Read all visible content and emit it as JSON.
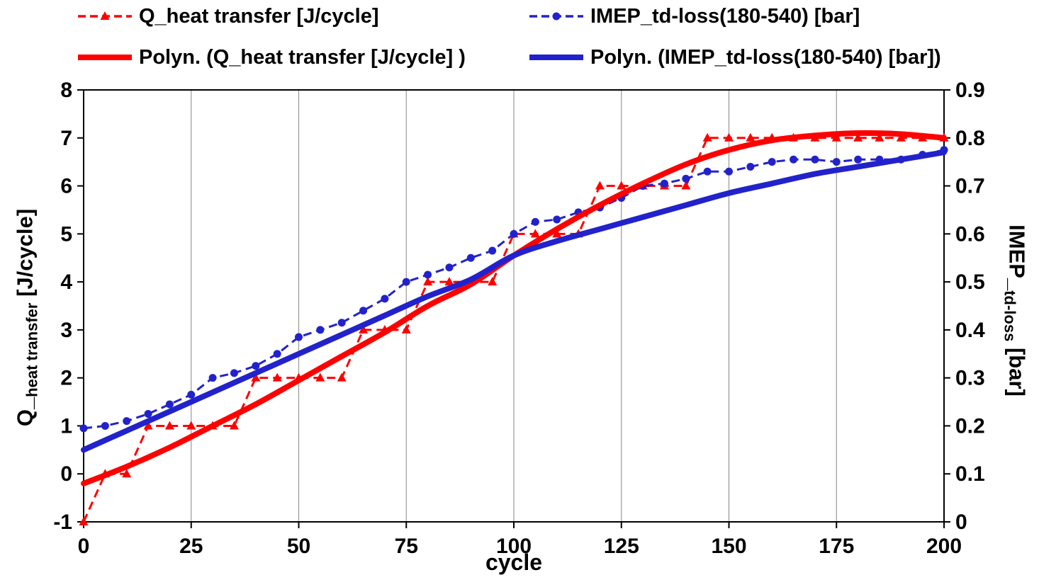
{
  "chart_data": {
    "type": "line",
    "title": "",
    "xlabel": "cycle",
    "ylabel_left": {
      "main": "Q_",
      "sub": "heat transfer",
      "rest": " [J/cycle]"
    },
    "ylabel_right": {
      "main": "IMEP_",
      "sub": "td-loss",
      "rest": "  [bar]"
    },
    "xlim": [
      0,
      200
    ],
    "ylim_left": [
      -1,
      8
    ],
    "ylim_right": [
      0,
      0.9
    ],
    "xticks": [
      "0",
      "25",
      "50",
      "75",
      "100",
      "125",
      "150",
      "175",
      "200"
    ],
    "yticks_left": [
      "-1",
      "0",
      "1",
      "2",
      "3",
      "4",
      "5",
      "6",
      "7",
      "8"
    ],
    "yticks_right": [
      "0",
      "0.1",
      "0.2",
      "0.3",
      "0.4",
      "0.5",
      "0.6",
      "0.7",
      "0.8",
      "0.9"
    ],
    "grid": "vertical-only",
    "legend_position": "top",
    "colors": {
      "red": "#FF0000",
      "blue": "#2222CC",
      "grid": "#999999",
      "axis": "#000000",
      "text": "#000000"
    },
    "series": [
      {
        "name": "Q_heat transfer [J/cycle]",
        "axis": "left",
        "color": "#FF0000",
        "line": "dashed",
        "width": 3,
        "marker": "triangle",
        "x": [
          0,
          5,
          10,
          15,
          20,
          25,
          30,
          35,
          40,
          45,
          50,
          55,
          60,
          65,
          70,
          75,
          80,
          85,
          90,
          95,
          100,
          105,
          110,
          115,
          120,
          125,
          130,
          135,
          140,
          145,
          150,
          155,
          160,
          165,
          170,
          175,
          180,
          185,
          190,
          195,
          200
        ],
        "y": [
          -1,
          0,
          0,
          1,
          1,
          1,
          1,
          1,
          2,
          2,
          2,
          2,
          2,
          3,
          3,
          3,
          4,
          4,
          4,
          4,
          5,
          5,
          5,
          5,
          6,
          6,
          6,
          6,
          6,
          7,
          7,
          7,
          7,
          7,
          7,
          7,
          7,
          7,
          7,
          7,
          7
        ]
      },
      {
        "name": "IMEP_td-loss(180-540)  [bar]",
        "axis": "right",
        "color": "#2222CC",
        "line": "dashed",
        "width": 3,
        "marker": "circle",
        "x": [
          0,
          5,
          10,
          15,
          20,
          25,
          30,
          35,
          40,
          45,
          50,
          55,
          60,
          65,
          70,
          75,
          80,
          85,
          90,
          95,
          100,
          105,
          110,
          115,
          120,
          125,
          130,
          135,
          140,
          145,
          150,
          155,
          160,
          165,
          170,
          175,
          180,
          185,
          190,
          195,
          200
        ],
        "y": [
          0.195,
          0.2,
          0.21,
          0.225,
          0.245,
          0.265,
          0.3,
          0.31,
          0.325,
          0.35,
          0.385,
          0.4,
          0.415,
          0.44,
          0.465,
          0.5,
          0.515,
          0.53,
          0.55,
          0.565,
          0.6,
          0.625,
          0.63,
          0.645,
          0.655,
          0.675,
          0.7,
          0.705,
          0.715,
          0.73,
          0.73,
          0.74,
          0.75,
          0.755,
          0.755,
          0.75,
          0.755,
          0.755,
          0.755,
          0.765,
          0.775
        ]
      },
      {
        "name": "Polyn. (Q_heat transfer [J/cycle] )",
        "axis": "left",
        "color": "#FF0000",
        "line": "solid",
        "width": 8,
        "marker": "none",
        "x": [
          0,
          10,
          20,
          30,
          40,
          50,
          60,
          70,
          80,
          90,
          100,
          110,
          120,
          130,
          140,
          150,
          160,
          170,
          180,
          190,
          200
        ],
        "y": [
          -0.2,
          0.15,
          0.55,
          1.0,
          1.45,
          1.95,
          2.45,
          2.95,
          3.5,
          3.95,
          4.55,
          5.1,
          5.6,
          6.05,
          6.45,
          6.75,
          6.95,
          7.05,
          7.1,
          7.08,
          7.0
        ]
      },
      {
        "name": "Polyn. (IMEP_td-loss(180-540)  [bar])",
        "axis": "right",
        "color": "#2222CC",
        "line": "solid",
        "width": 8,
        "marker": "none",
        "x": [
          0,
          10,
          20,
          30,
          40,
          50,
          60,
          70,
          80,
          90,
          100,
          110,
          120,
          130,
          140,
          150,
          160,
          170,
          180,
          190,
          200
        ],
        "y": [
          0.15,
          0.19,
          0.23,
          0.27,
          0.31,
          0.35,
          0.39,
          0.43,
          0.47,
          0.505,
          0.555,
          0.585,
          0.61,
          0.635,
          0.66,
          0.685,
          0.705,
          0.725,
          0.74,
          0.755,
          0.77
        ]
      }
    ]
  }
}
